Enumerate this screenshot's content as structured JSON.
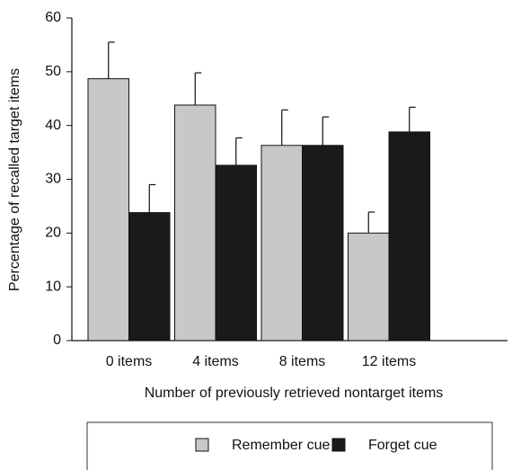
{
  "chart_data": {
    "type": "bar",
    "categories": [
      "0 items",
      "4 items",
      "8 items",
      "12 items"
    ],
    "series": [
      {
        "name": "Remember cue",
        "color": "#c8c8c8",
        "values": [
          48.7,
          43.8,
          36.3,
          20.0
        ],
        "errors": [
          6.8,
          6.0,
          6.6,
          3.9
        ]
      },
      {
        "name": "Forget cue",
        "color": "#1a1a1a",
        "values": [
          23.8,
          32.6,
          36.3,
          38.8
        ],
        "errors": [
          5.2,
          5.1,
          5.3,
          4.6
        ]
      }
    ],
    "xlabel": "Number of previously retrieved nontarget items",
    "ylabel": "Percentage of recalled target items",
    "ylim": [
      0,
      60
    ],
    "yticks": [
      0,
      10,
      20,
      30,
      40,
      50,
      60
    ],
    "grid": false,
    "legend": "bottom"
  }
}
